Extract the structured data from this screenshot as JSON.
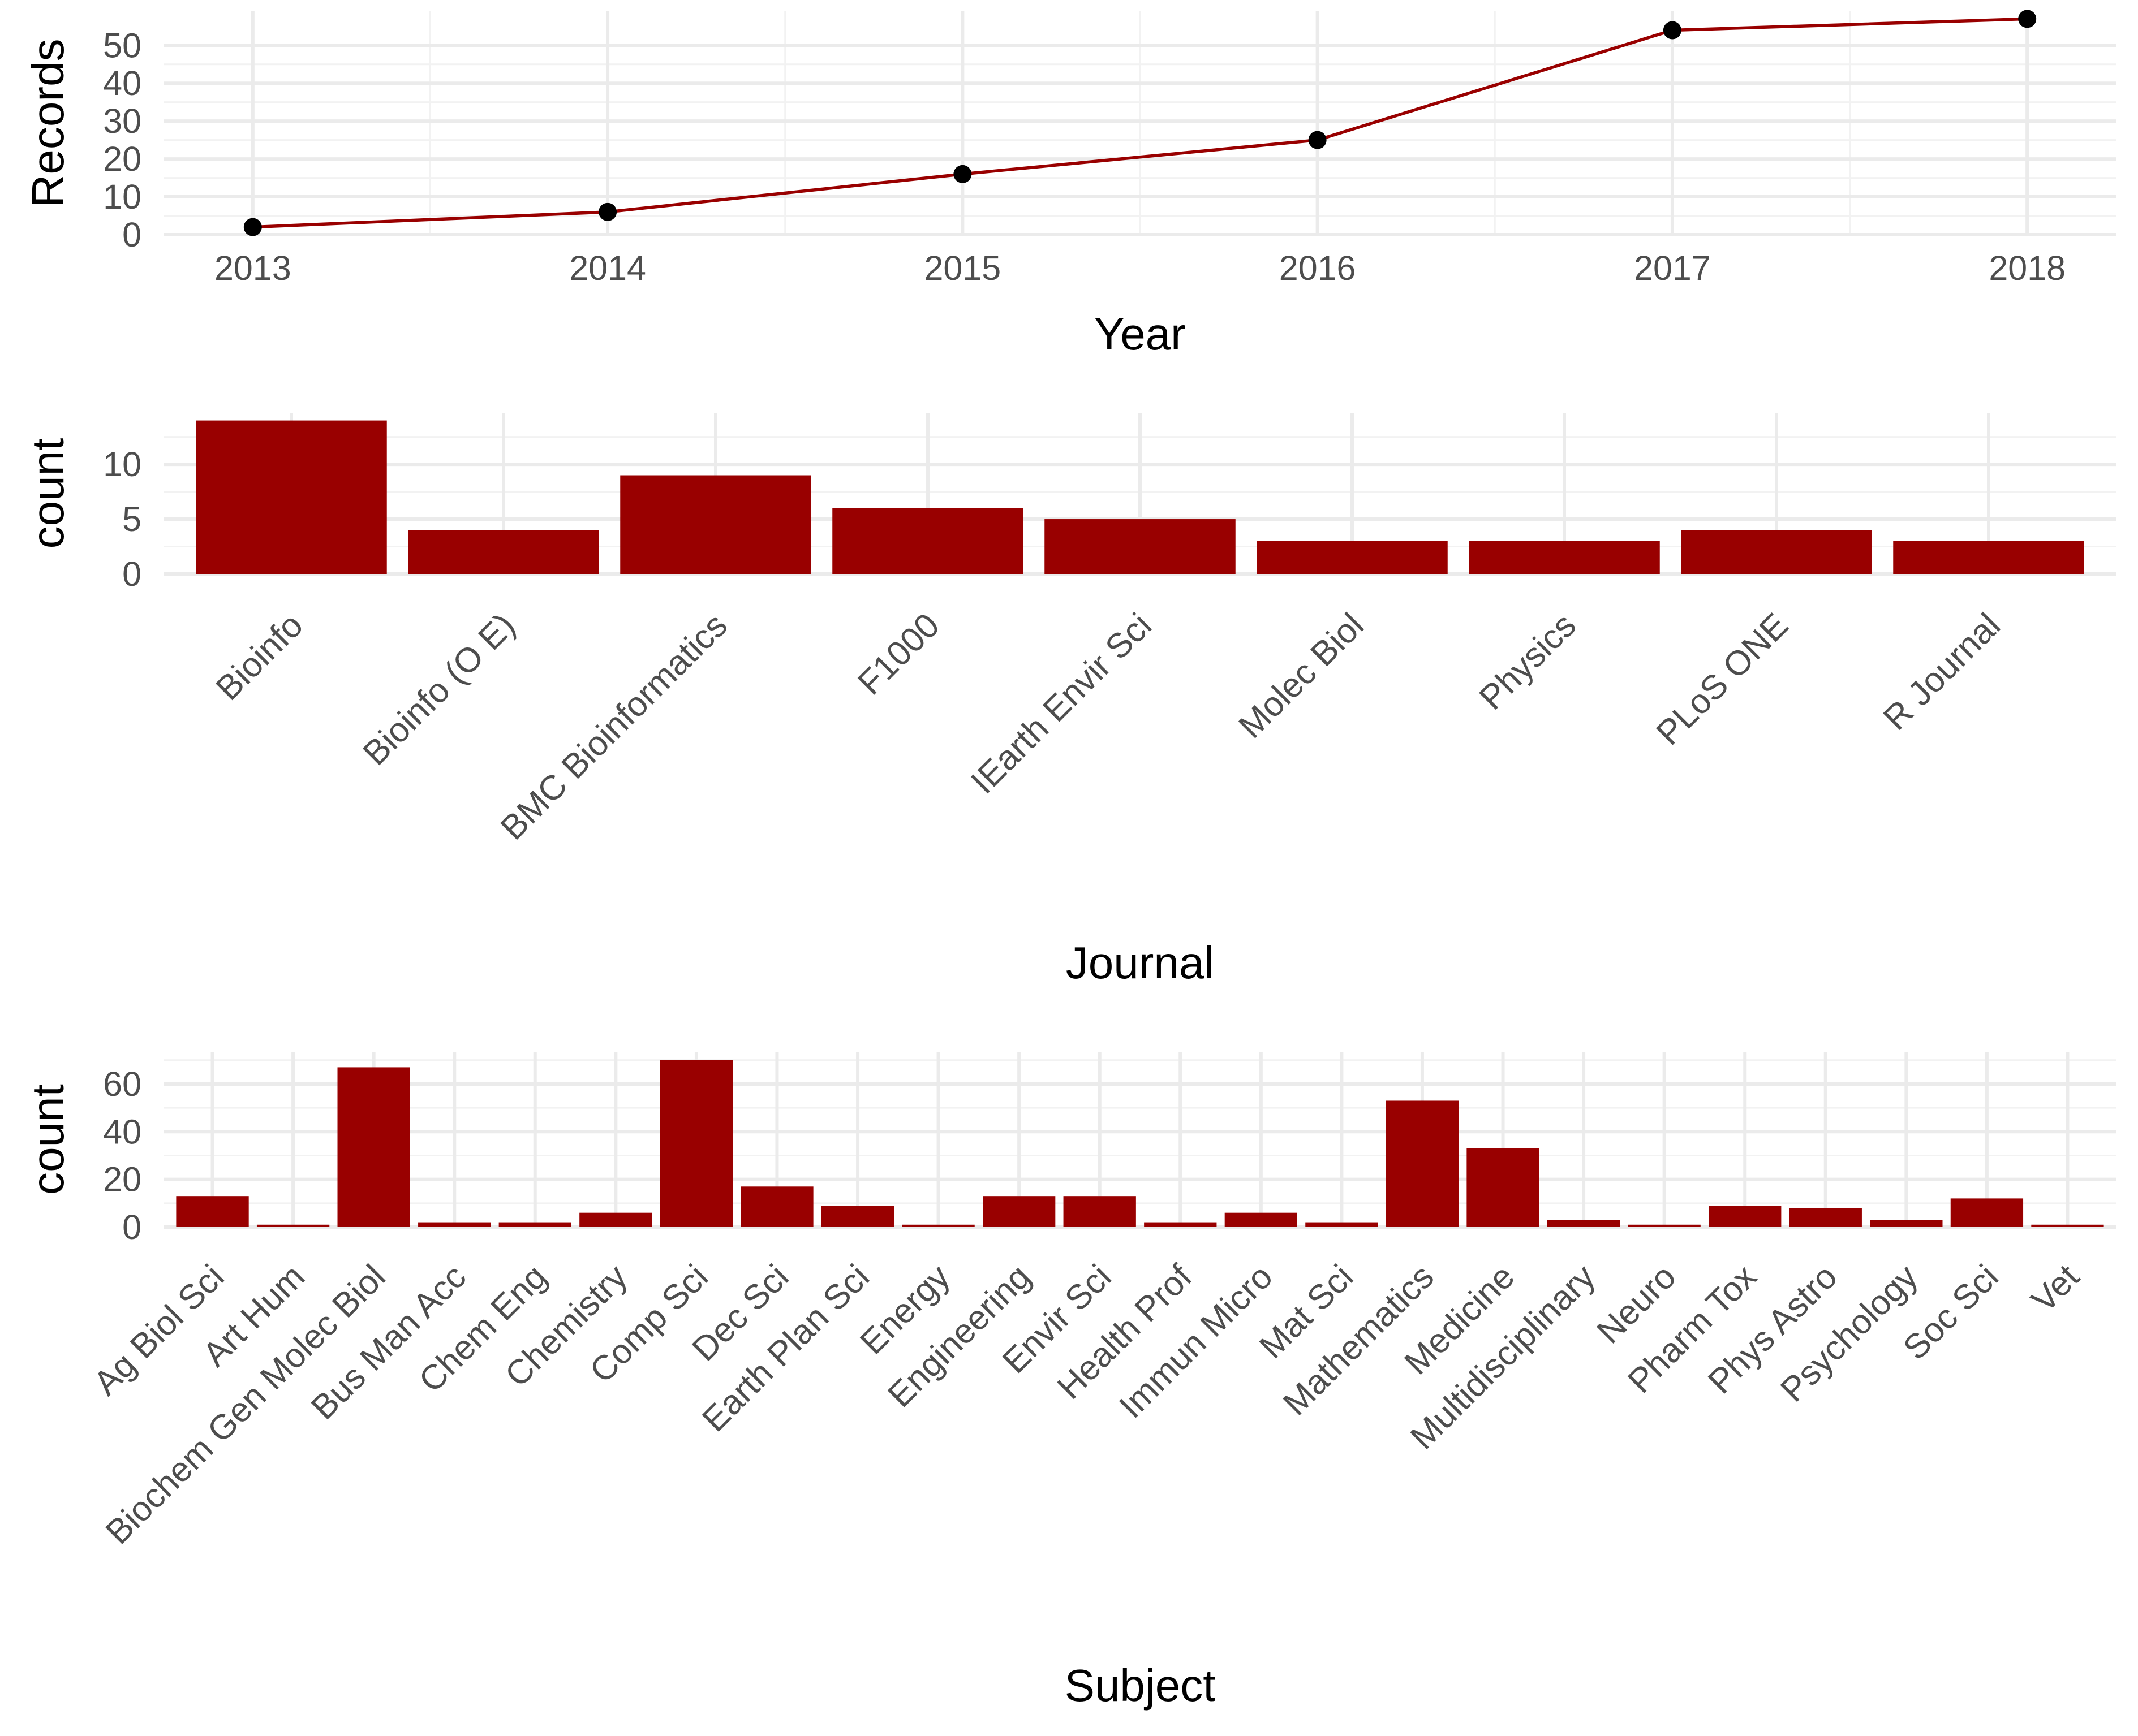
{
  "chart_data": [
    {
      "type": "line",
      "xlabel": "Year",
      "ylabel": "Records",
      "x": [
        2013,
        2014,
        2015,
        2016,
        2017,
        2018
      ],
      "series": [
        {
          "values": [
            2,
            6,
            16,
            25,
            54,
            57
          ],
          "color": "#990000",
          "marker_color": "#000000"
        }
      ],
      "xlim": [
        2012.75,
        2018.25
      ],
      "ylim": [
        0,
        59
      ],
      "yticks": [
        0,
        10,
        20,
        30,
        40,
        50
      ],
      "grid": true
    },
    {
      "type": "bar",
      "xlabel": "Journal",
      "ylabel": "count",
      "categories": [
        "Bioinfo",
        "Bioinfo (O E)",
        "BMC Bioinformatics",
        "F1000",
        "IEarth Envir Sci",
        "Molec Biol",
        "Physics",
        "PLoS ONE",
        "R Journal"
      ],
      "values": [
        14,
        4,
        9,
        6,
        5,
        3,
        3,
        4,
        3
      ],
      "color": "#990000",
      "ylim": [
        0,
        14
      ],
      "yticks": [
        0,
        5,
        10
      ],
      "grid": true
    },
    {
      "type": "bar",
      "xlabel": "Subject",
      "ylabel": "count",
      "categories": [
        "Ag Biol Sci",
        "Art Hum",
        "Biochem Gen Molec Biol",
        "Bus Man Acc",
        "Chem Eng",
        "Chemistry",
        "Comp Sci",
        "Dec Sci",
        "Earth Plan Sci",
        "Energy",
        "Engineering",
        "Envir Sci",
        "Health Prof",
        "Immun Micro",
        "Mat Sci",
        "Mathematics",
        "Medicine",
        "Multidisciplinary",
        "Neuro",
        "Pharm Tox",
        "Phys Astro",
        "Psychology",
        "Soc Sci",
        "Vet"
      ],
      "values": [
        13,
        1,
        67,
        2,
        2,
        6,
        70,
        17,
        9,
        1,
        13,
        13,
        2,
        6,
        2,
        53,
        33,
        3,
        1,
        9,
        8,
        3,
        12,
        1
      ],
      "color": "#990000",
      "ylim": [
        0,
        70
      ],
      "yticks": [
        0,
        20,
        40,
        60
      ],
      "grid": true
    }
  ]
}
